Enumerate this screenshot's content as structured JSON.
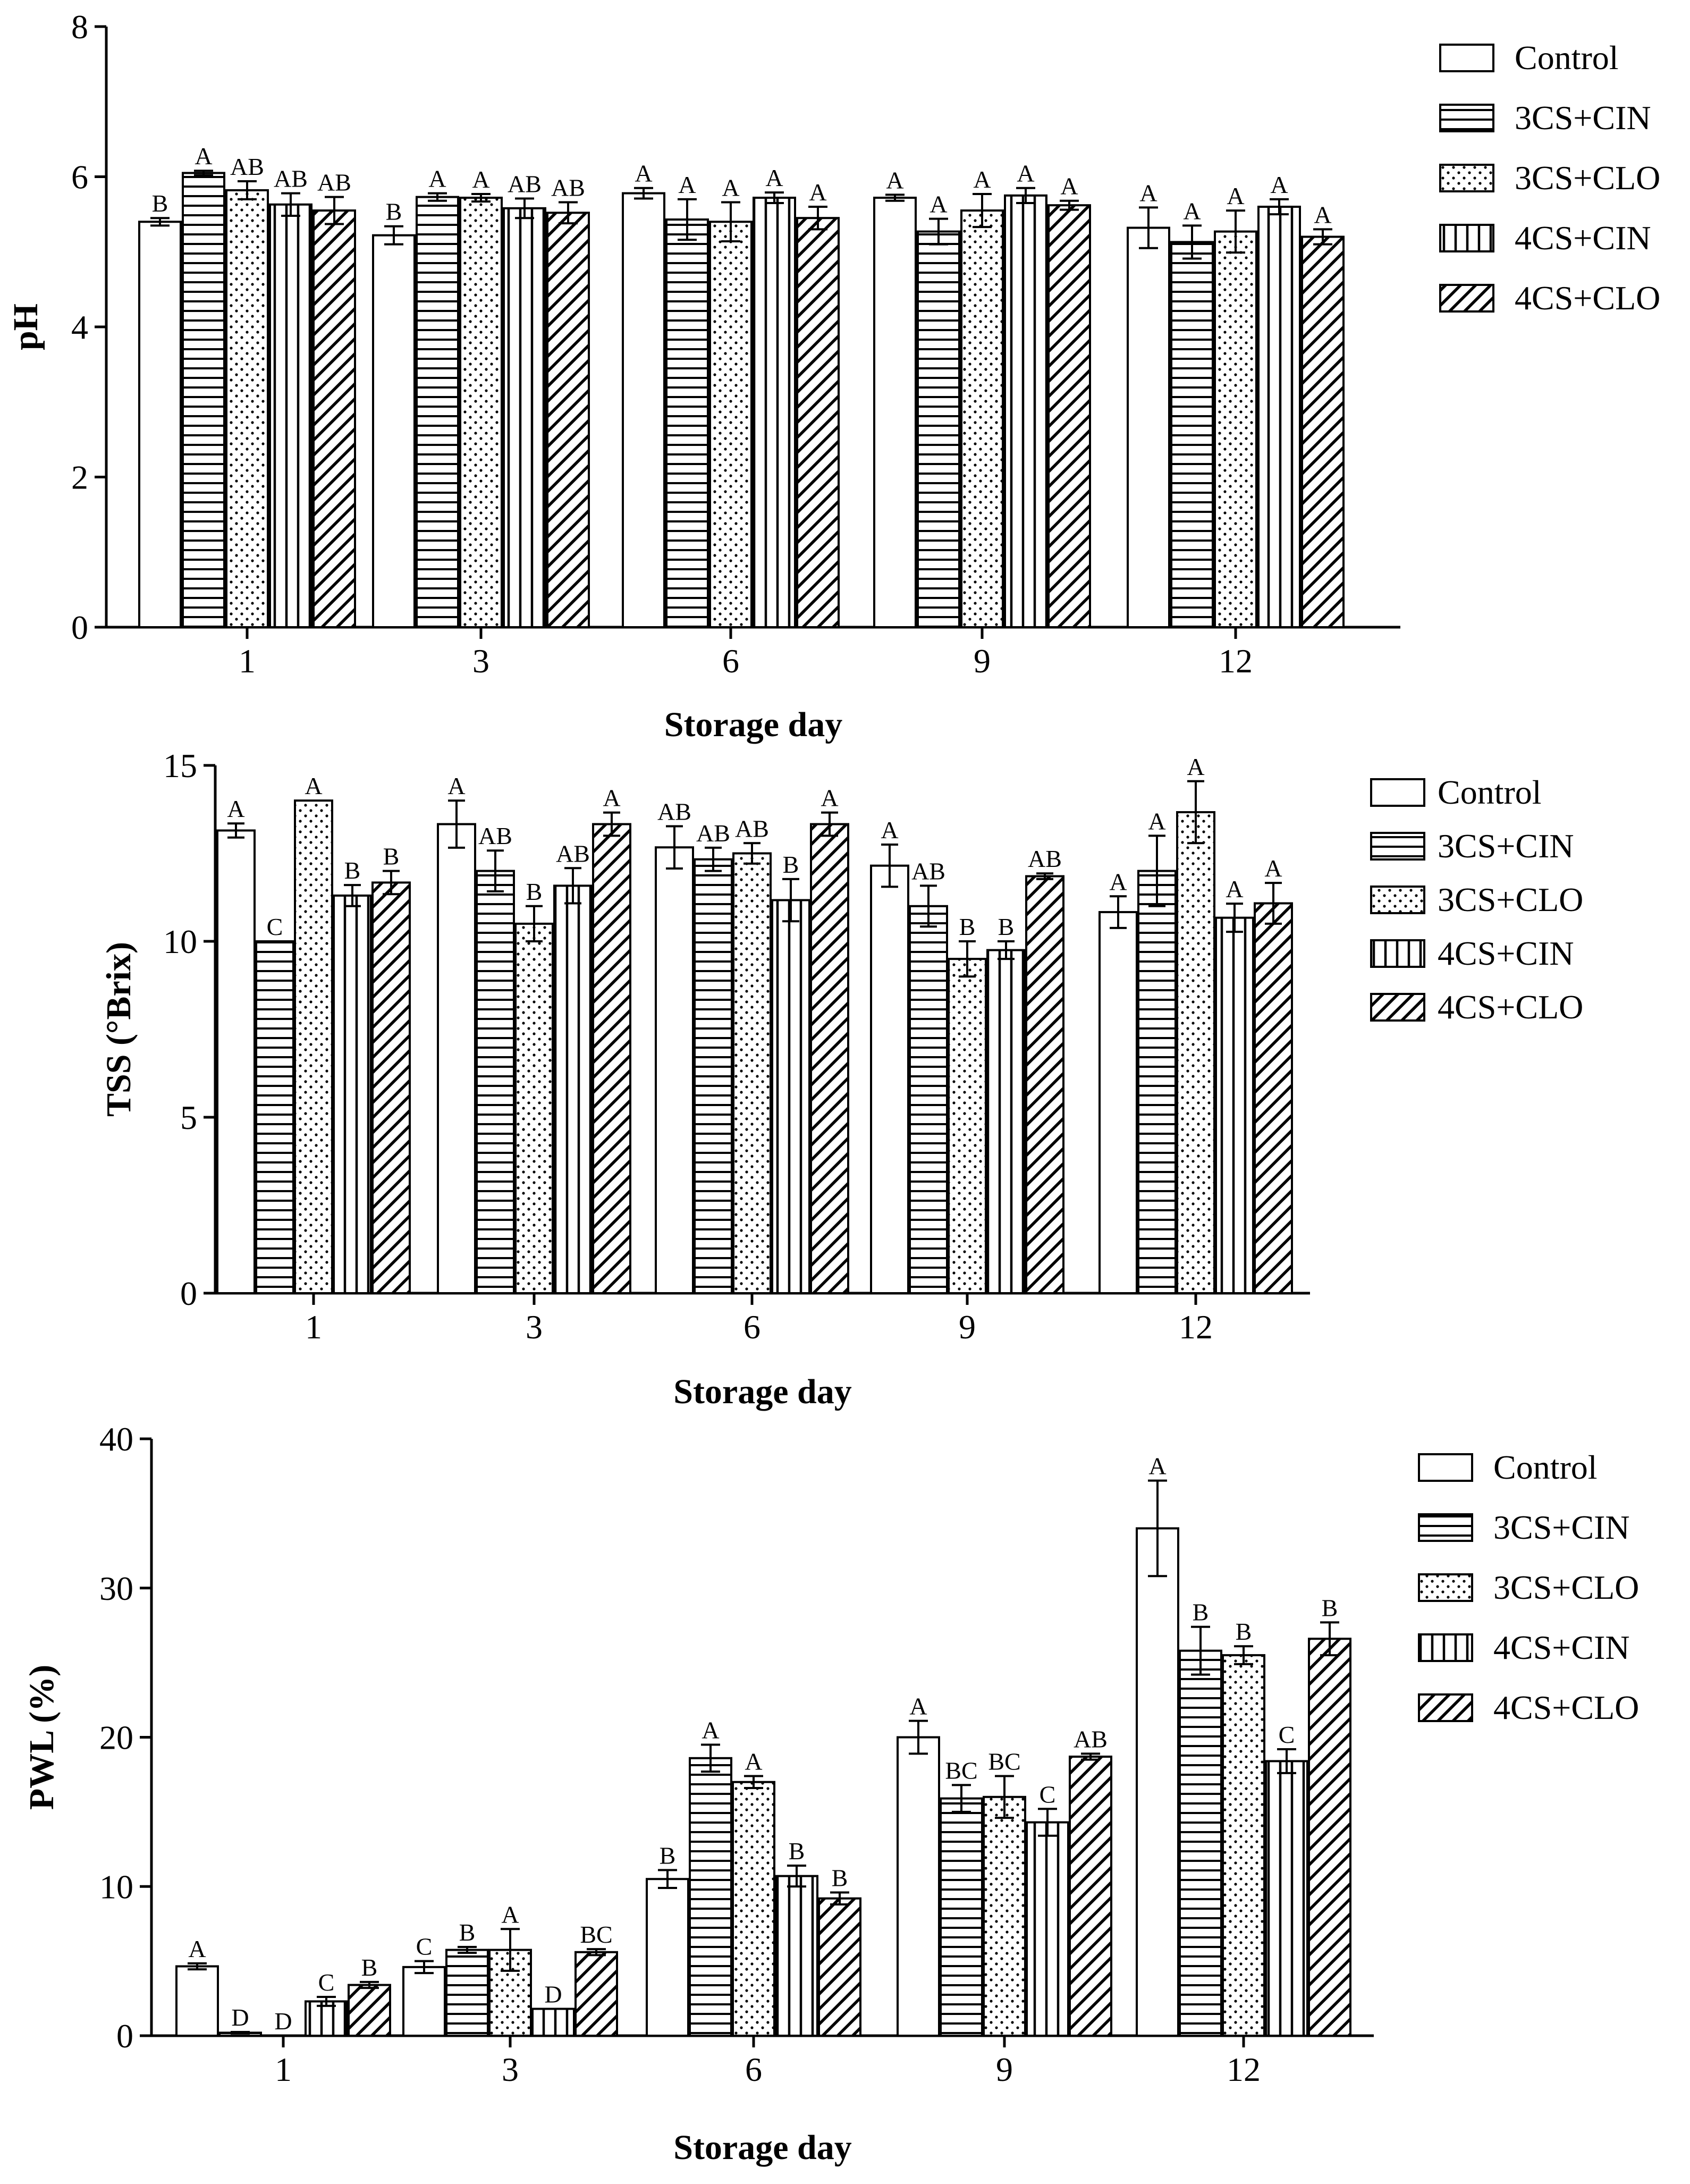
{
  "chart_data": [
    {
      "type": "bar",
      "title": "",
      "xlabel": "Storage day",
      "ylabel": "pH",
      "ylim": [
        0,
        8
      ],
      "yticks": [
        0,
        2,
        4,
        6,
        8
      ],
      "categories": [
        "1",
        "3",
        "6",
        "9",
        "12"
      ],
      "series": [
        {
          "name": "Control",
          "values": [
            5.4,
            5.22,
            5.78,
            5.72,
            5.32
          ],
          "errors": [
            0.05,
            0.12,
            0.07,
            0.04,
            0.27
          ],
          "letters": [
            "B",
            "B",
            "A",
            "A",
            "A"
          ]
        },
        {
          "name": "3CS+CIN",
          "values": [
            6.05,
            5.73,
            5.43,
            5.27,
            5.13
          ],
          "errors": [
            0.03,
            0.05,
            0.27,
            0.17,
            0.22
          ],
          "letters": [
            "A",
            "A",
            "A",
            "A",
            "A"
          ]
        },
        {
          "name": "3CS+CLO",
          "values": [
            5.82,
            5.72,
            5.4,
            5.55,
            5.27
          ],
          "errors": [
            0.12,
            0.05,
            0.26,
            0.22,
            0.28
          ],
          "letters": [
            "AB",
            "A",
            "A",
            "A",
            "A"
          ]
        },
        {
          "name": "4CS+CIN",
          "values": [
            5.63,
            5.58,
            5.72,
            5.75,
            5.6
          ],
          "errors": [
            0.15,
            0.13,
            0.07,
            0.1,
            0.1
          ],
          "letters": [
            "AB",
            "AB",
            "A",
            "A",
            "A"
          ]
        },
        {
          "name": "4CS+CLO",
          "values": [
            5.55,
            5.52,
            5.45,
            5.62,
            5.2
          ],
          "errors": [
            0.18,
            0.14,
            0.15,
            0.06,
            0.1
          ],
          "letters": [
            "AB",
            "AB",
            "A",
            "A",
            "A"
          ]
        }
      ]
    },
    {
      "type": "bar",
      "title": "",
      "xlabel": "Storage day",
      "ylabel": "TSS (°Brix)",
      "ylim": [
        0,
        15
      ],
      "yticks": [
        0,
        5,
        10,
        15
      ],
      "categories": [
        "1",
        "3",
        "6",
        "9",
        "12"
      ],
      "series": [
        {
          "name": "Control",
          "values": [
            13.15,
            13.33,
            12.67,
            12.15,
            10.83
          ],
          "errors": [
            0.2,
            0.67,
            0.6,
            0.6,
            0.45
          ],
          "letters": [
            "A",
            "A",
            "AB",
            "A",
            "A"
          ]
        },
        {
          "name": "3CS+CIN",
          "values": [
            10.0,
            12.0,
            12.33,
            11.0,
            12.0
          ],
          "errors": [
            0.0,
            0.58,
            0.33,
            0.58,
            1.0
          ],
          "letters": [
            "C",
            "AB",
            "AB",
            "AB",
            "A"
          ]
        },
        {
          "name": "3CS+CLO",
          "values": [
            14.0,
            10.5,
            12.5,
            9.5,
            13.67
          ],
          "errors": [
            0.0,
            0.5,
            0.29,
            0.5,
            0.88
          ],
          "letters": [
            "A",
            "B",
            "AB",
            "B",
            "A"
          ]
        },
        {
          "name": "4CS+CIN",
          "values": [
            11.3,
            11.58,
            11.17,
            9.75,
            10.67
          ],
          "errors": [
            0.3,
            0.5,
            0.6,
            0.25,
            0.4
          ],
          "letters": [
            "B",
            "AB",
            "B",
            "B",
            "A"
          ]
        },
        {
          "name": "4CS+CLO",
          "values": [
            11.67,
            13.33,
            13.33,
            11.85,
            11.08
          ],
          "errors": [
            0.33,
            0.33,
            0.33,
            0.08,
            0.58
          ],
          "letters": [
            "B",
            "A",
            "A",
            "AB",
            "A"
          ]
        }
      ]
    },
    {
      "type": "bar",
      "title": "",
      "xlabel": "Storage day",
      "ylabel": "PWL (%)",
      "ylim": [
        0,
        40
      ],
      "yticks": [
        0,
        10,
        20,
        30,
        40
      ],
      "categories": [
        "1",
        "3",
        "6",
        "9",
        "12"
      ],
      "series": [
        {
          "name": "Control",
          "values": [
            4.65,
            4.6,
            10.5,
            20.0,
            34.0
          ],
          "errors": [
            0.2,
            0.4,
            0.6,
            1.1,
            3.2
          ],
          "letters": [
            "A",
            "C",
            "B",
            "A",
            "A"
          ]
        },
        {
          "name": "3CS+CIN",
          "values": [
            0.2,
            5.75,
            18.6,
            15.9,
            25.8
          ],
          "errors": [
            0.05,
            0.2,
            0.9,
            0.9,
            1.6
          ],
          "letters": [
            "D",
            "B",
            "A",
            "BC",
            "B"
          ]
        },
        {
          "name": "3CS+CLO",
          "values": [
            0.0,
            5.75,
            17.0,
            16.0,
            25.5
          ],
          "errors": [
            0.0,
            1.4,
            0.4,
            1.4,
            0.6
          ],
          "letters": [
            "D",
            "A",
            "A",
            "BC",
            "B"
          ]
        },
        {
          "name": "4CS+CIN",
          "values": [
            2.3,
            1.8,
            10.7,
            14.3,
            18.4
          ],
          "errors": [
            0.3,
            0.0,
            0.7,
            0.9,
            0.8
          ],
          "letters": [
            "C",
            "D",
            "B",
            "C",
            "C"
          ]
        },
        {
          "name": "4CS+CLO",
          "values": [
            3.4,
            5.6,
            9.2,
            18.7,
            26.6
          ],
          "errors": [
            0.2,
            0.2,
            0.4,
            0.2,
            1.1
          ],
          "letters": [
            "B",
            "BC",
            "B",
            "AB",
            "B"
          ]
        }
      ]
    }
  ]
}
